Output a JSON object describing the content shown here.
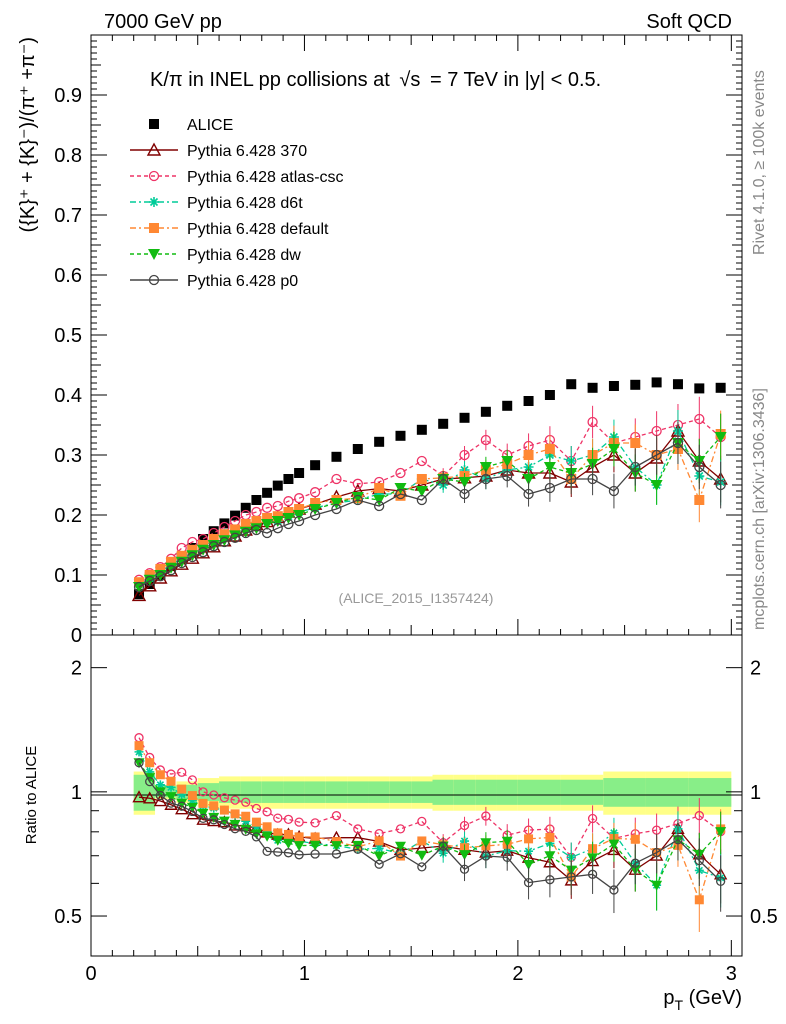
{
  "header": {
    "energy": "7000 GeV pp",
    "category": "Soft QCD",
    "title_main": "K/π in INEL pp collisions at",
    "title_sqrt": "√s",
    "title_rest": "=  7 TeV in |y| < 0.5.",
    "side_rivet": "Rivet 4.1.0, ≥ 100k events",
    "side_mcplots": "mcplots.cern.ch [arXiv:1306.3436]",
    "analysis_id": "(ALICE_2015_I1357424)"
  },
  "axes": {
    "main_ylabel": "({K}⁺ + {K}⁻)/(π⁺ +π⁻)",
    "ratio_ylabel": "Ratio to ALICE",
    "xlabel": "p_T (GeV)",
    "xlabel_main": "p",
    "xlabel_sub": "T",
    "xlabel_unit": " (GeV)",
    "x_ticks": [
      "0",
      "1",
      "2",
      "3"
    ],
    "main_y_ticks": [
      "0",
      "0.1",
      "0.2",
      "0.3",
      "0.4",
      "0.5",
      "0.6",
      "0.7",
      "0.8",
      "0.9"
    ],
    "ratio_y_ticks": [
      "0.5",
      "1",
      "2"
    ]
  },
  "legend": [
    {
      "label": "ALICE",
      "color": "#000000",
      "marker": "square-filled",
      "line": "none"
    },
    {
      "label": "Pythia 6.428 370",
      "color": "#800000",
      "marker": "triangle-open",
      "line": "solid"
    },
    {
      "label": "Pythia 6.428 atlas-csc",
      "color": "#ee3366",
      "marker": "circle-open",
      "line": "dashed"
    },
    {
      "label": "Pythia 6.428 d6t",
      "color": "#00cc99",
      "marker": "star",
      "line": "dashdot"
    },
    {
      "label": "Pythia 6.428 default",
      "color": "#ff8833",
      "marker": "square-filled",
      "line": "dashdot"
    },
    {
      "label": "Pythia 6.428 dw",
      "color": "#11bb11",
      "marker": "triangle-down-filled",
      "line": "dashed"
    },
    {
      "label": "Pythia 6.428 p0",
      "color": "#444444",
      "marker": "circle-open",
      "line": "solid"
    }
  ],
  "chart_data": {
    "type": "scatter",
    "title": "K/π in INEL pp collisions at √s = 7 TeV in |y| < 0.5.",
    "xlabel": "p_T (GeV)",
    "ylabel": "({K}⁺ + {K}⁻)/(π⁺ +π⁻)",
    "xlim": [
      0,
      3.05
    ],
    "ylim": [
      0,
      1.0
    ],
    "ratio_ylabel": "Ratio to ALICE",
    "ratio_ylim": [
      0.4,
      2.4
    ],
    "ratio_yscale": "log",
    "x": [
      0.225,
      0.275,
      0.325,
      0.375,
      0.425,
      0.475,
      0.525,
      0.575,
      0.625,
      0.675,
      0.725,
      0.775,
      0.825,
      0.875,
      0.925,
      0.975,
      1.05,
      1.15,
      1.25,
      1.35,
      1.45,
      1.55,
      1.65,
      1.75,
      1.85,
      1.95,
      2.05,
      2.15,
      2.25,
      2.35,
      2.45,
      2.55,
      2.65,
      2.75,
      2.85,
      2.95
    ],
    "series": [
      {
        "name": "ALICE",
        "values": [
          0.068,
          0.085,
          0.1,
          0.115,
          0.13,
          0.145,
          0.16,
          0.173,
          0.186,
          0.199,
          0.212,
          0.225,
          0.237,
          0.249,
          0.26,
          0.27,
          0.283,
          0.297,
          0.31,
          0.322,
          0.332,
          0.342,
          0.352,
          0.362,
          0.372,
          0.382,
          0.39,
          0.4,
          0.418,
          0.412,
          0.415,
          0.417,
          0.421,
          0.418,
          0.411,
          0.412
        ]
      },
      {
        "name": "Pythia 6.428 370",
        "values": [
          0.066,
          0.082,
          0.095,
          0.107,
          0.118,
          0.128,
          0.137,
          0.147,
          0.157,
          0.165,
          0.175,
          0.184,
          0.189,
          0.196,
          0.205,
          0.21,
          0.218,
          0.23,
          0.24,
          0.244,
          0.24,
          0.25,
          0.26,
          0.262,
          0.265,
          0.275,
          0.27,
          0.27,
          0.255,
          0.28,
          0.3,
          0.27,
          0.295,
          0.34,
          0.29,
          0.26
        ]
      },
      {
        "name": "Pythia 6.428 atlas-csc",
        "values": [
          0.092,
          0.103,
          0.113,
          0.127,
          0.145,
          0.155,
          0.16,
          0.17,
          0.18,
          0.19,
          0.2,
          0.205,
          0.212,
          0.215,
          0.223,
          0.228,
          0.238,
          0.26,
          0.252,
          0.255,
          0.27,
          0.29,
          0.265,
          0.3,
          0.325,
          0.3,
          0.315,
          0.325,
          0.29,
          0.355,
          0.32,
          0.33,
          0.34,
          0.35,
          0.36,
          0.33
        ]
      },
      {
        "name": "Pythia 6.428 d6t",
        "values": [
          0.085,
          0.095,
          0.104,
          0.118,
          0.128,
          0.138,
          0.148,
          0.158,
          0.168,
          0.175,
          0.18,
          0.185,
          0.19,
          0.19,
          0.198,
          0.205,
          0.212,
          0.22,
          0.225,
          0.235,
          0.235,
          0.26,
          0.25,
          0.275,
          0.26,
          0.275,
          0.28,
          0.3,
          0.29,
          0.3,
          0.33,
          0.28,
          0.25,
          0.34,
          0.265,
          0.255
        ]
      },
      {
        "name": "Pythia 6.428 default",
        "values": [
          0.088,
          0.1,
          0.11,
          0.122,
          0.132,
          0.142,
          0.15,
          0.16,
          0.168,
          0.176,
          0.185,
          0.19,
          0.195,
          0.198,
          0.205,
          0.21,
          0.22,
          0.225,
          0.228,
          0.245,
          0.232,
          0.26,
          0.262,
          0.265,
          0.275,
          0.285,
          0.3,
          0.31,
          0.26,
          0.3,
          0.32,
          0.32,
          0.3,
          0.31,
          0.225,
          0.335
        ]
      },
      {
        "name": "Pythia 6.428 dw",
        "values": [
          0.08,
          0.092,
          0.1,
          0.112,
          0.122,
          0.133,
          0.142,
          0.15,
          0.158,
          0.166,
          0.172,
          0.178,
          0.185,
          0.19,
          0.195,
          0.2,
          0.21,
          0.22,
          0.23,
          0.225,
          0.245,
          0.24,
          0.26,
          0.255,
          0.28,
          0.29,
          0.26,
          0.28,
          0.27,
          0.285,
          0.31,
          0.27,
          0.25,
          0.32,
          0.29,
          0.33
        ]
      },
      {
        "name": "Pythia 6.428 p0",
        "values": [
          0.08,
          0.09,
          0.098,
          0.108,
          0.12,
          0.13,
          0.138,
          0.148,
          0.155,
          0.162,
          0.17,
          0.175,
          0.17,
          0.178,
          0.185,
          0.19,
          0.2,
          0.21,
          0.225,
          0.215,
          0.235,
          0.225,
          0.26,
          0.235,
          0.26,
          0.265,
          0.235,
          0.245,
          0.26,
          0.26,
          0.24,
          0.28,
          0.3,
          0.32,
          0.28,
          0.25
        ]
      }
    ],
    "alice_ratio_band": {
      "x_edges": [
        0.2,
        0.3,
        0.4,
        0.5,
        0.6,
        0.7,
        0.8,
        0.9,
        1.0,
        1.1,
        1.2,
        1.3,
        1.4,
        1.5,
        1.6,
        1.7,
        1.8,
        1.9,
        2.0,
        2.2,
        2.4,
        2.6,
        2.8,
        3.0
      ],
      "inner": [
        0.1,
        0.03,
        0.04,
        0.05,
        0.06,
        0.06,
        0.06,
        0.06,
        0.06,
        0.06,
        0.06,
        0.06,
        0.06,
        0.06,
        0.07,
        0.07,
        0.07,
        0.07,
        0.07,
        0.07,
        0.08,
        0.08,
        0.08
      ],
      "outer": [
        0.12,
        0.04,
        0.06,
        0.08,
        0.09,
        0.09,
        0.09,
        0.09,
        0.09,
        0.09,
        0.09,
        0.09,
        0.09,
        0.09,
        0.1,
        0.1,
        0.1,
        0.1,
        0.1,
        0.1,
        0.12,
        0.12,
        0.12
      ]
    }
  }
}
